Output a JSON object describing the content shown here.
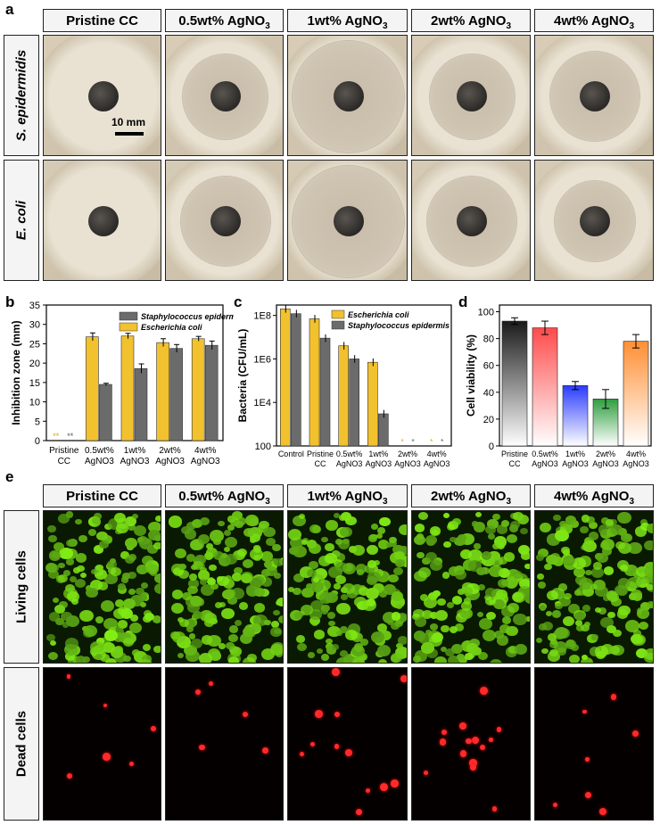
{
  "panels": {
    "a": "a",
    "b": "b",
    "c": "c",
    "d": "d",
    "e": "e"
  },
  "columns": [
    "Pristine CC",
    "0.5wt% AgNO",
    "1wt% AgNO",
    "2wt% AgNO",
    "4wt% AgNO"
  ],
  "columns_sub": [
    "",
    "3",
    "3",
    "3",
    "3"
  ],
  "rows_a": [
    "S. epidermidis",
    "E. coli"
  ],
  "rows_e": [
    "Living cells",
    "Dead cells"
  ],
  "scalebar": "10 mm",
  "colors": {
    "yellow": "#f2c12e",
    "grey": "#6b6b6b",
    "black": "#1a1a1a",
    "red": "#ff4b4b",
    "blue": "#2a3bff",
    "green": "#2e9e3e",
    "orange": "#ff8f33"
  },
  "chart_data": [
    {
      "type": "bar",
      "ylabel": "Inhibition zone (mm)",
      "ylim": [
        0,
        35
      ],
      "yticks": [
        0,
        5,
        10,
        15,
        20,
        25,
        30,
        35
      ],
      "categories": [
        [
          "Pristine",
          "CC"
        ],
        [
          "0.5wt%",
          "AgNO3"
        ],
        [
          "1wt%",
          "AgNO3"
        ],
        [
          "2wt%",
          "AgNO3"
        ],
        [
          "4wt%",
          "AgNO3"
        ]
      ],
      "series": [
        {
          "name": "Staphylococcus epidermis",
          "color": "#6b6b6b",
          "values": [
            0,
            14.5,
            18.6,
            23.8,
            24.6
          ],
          "err": [
            0,
            0.3,
            1.2,
            1.0,
            1.1
          ]
        },
        {
          "name": "Escherichia coli",
          "color": "#f2c12e",
          "values": [
            0,
            26.8,
            27.0,
            25.3,
            26.3
          ],
          "err": [
            0,
            1.0,
            0.7,
            1.0,
            0.6
          ]
        }
      ],
      "markers": [
        "**",
        "**"
      ],
      "legend": "top-right"
    },
    {
      "type": "bar",
      "ylabel": "Bacteria (CFU/mL)",
      "scale": "log",
      "ylim": [
        100,
        300000000
      ],
      "yticks": [
        "100",
        "1E4",
        "1E6",
        "1E8"
      ],
      "categories": [
        [
          "Control"
        ],
        [
          "Pristine",
          "CC"
        ],
        [
          "0.5wt%",
          "AgNO3"
        ],
        [
          "1wt%",
          "AgNO3"
        ],
        [
          "2wt%",
          "AgNO3"
        ],
        [
          "4wt%",
          "AgNO3"
        ]
      ],
      "series": [
        {
          "name": "Escherichia coli",
          "color": "#f2c12e",
          "values": [
            200000000,
            70000000,
            4000000,
            700000,
            null,
            null
          ]
        },
        {
          "name": "Staphylococcus epidermis",
          "color": "#6b6b6b",
          "values": [
            120000000,
            9000000,
            1000000,
            3000,
            null,
            null
          ]
        }
      ],
      "markers": [
        "*",
        "*"
      ],
      "legend": "top-right"
    },
    {
      "type": "bar",
      "ylabel": "Cell viability (%)",
      "ylim": [
        0,
        105
      ],
      "yticks": [
        0,
        20,
        40,
        60,
        80,
        100
      ],
      "categories": [
        [
          "Pristine",
          "CC"
        ],
        [
          "0.5wt%",
          "AgNO3"
        ],
        [
          "1wt%",
          "AgNO3"
        ],
        [
          "2wt%",
          "AgNO3"
        ],
        [
          "4wt%",
          "AgNO3"
        ]
      ],
      "values": [
        93,
        88,
        45,
        35,
        78
      ],
      "err": [
        2.5,
        5,
        3,
        7,
        5
      ],
      "colors": [
        "#1a1a1a",
        "#ff4b4b",
        "#2a3bff",
        "#2e9e3e",
        "#ff8f33"
      ]
    }
  ]
}
